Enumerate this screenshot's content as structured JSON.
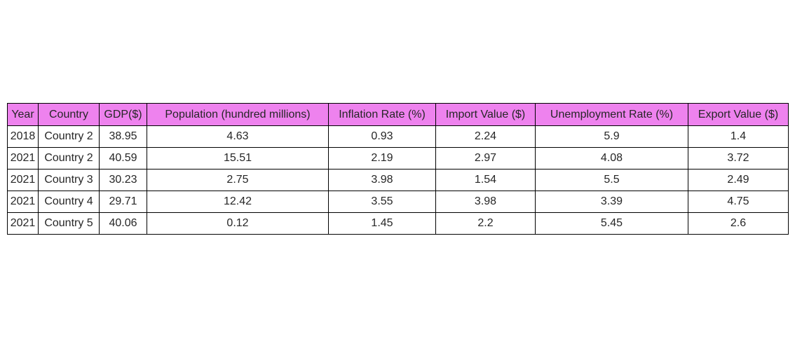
{
  "chart_data": {
    "type": "table",
    "header_color": "#ee82ee",
    "columns": [
      "Year",
      "Country",
      "GDP($)",
      "Population (hundred millions)",
      "Inflation Rate (%)",
      "Import Value ($)",
      "Unemployment Rate (%)",
      "Export Value ($)"
    ],
    "rows": [
      [
        "2018",
        "Country 2",
        "38.95",
        "4.63",
        "0.93",
        "2.24",
        "5.9",
        "1.4"
      ],
      [
        "2021",
        "Country 2",
        "40.59",
        "15.51",
        "2.19",
        "2.97",
        "4.08",
        "3.72"
      ],
      [
        "2021",
        "Country 3",
        "30.23",
        "2.75",
        "3.98",
        "1.54",
        "5.5",
        "2.49"
      ],
      [
        "2021",
        "Country 4",
        "29.71",
        "12.42",
        "3.55",
        "3.98",
        "3.39",
        "4.75"
      ],
      [
        "2021",
        "Country 5",
        "40.06",
        "0.12",
        "1.45",
        "2.2",
        "5.45",
        "2.6"
      ]
    ]
  }
}
